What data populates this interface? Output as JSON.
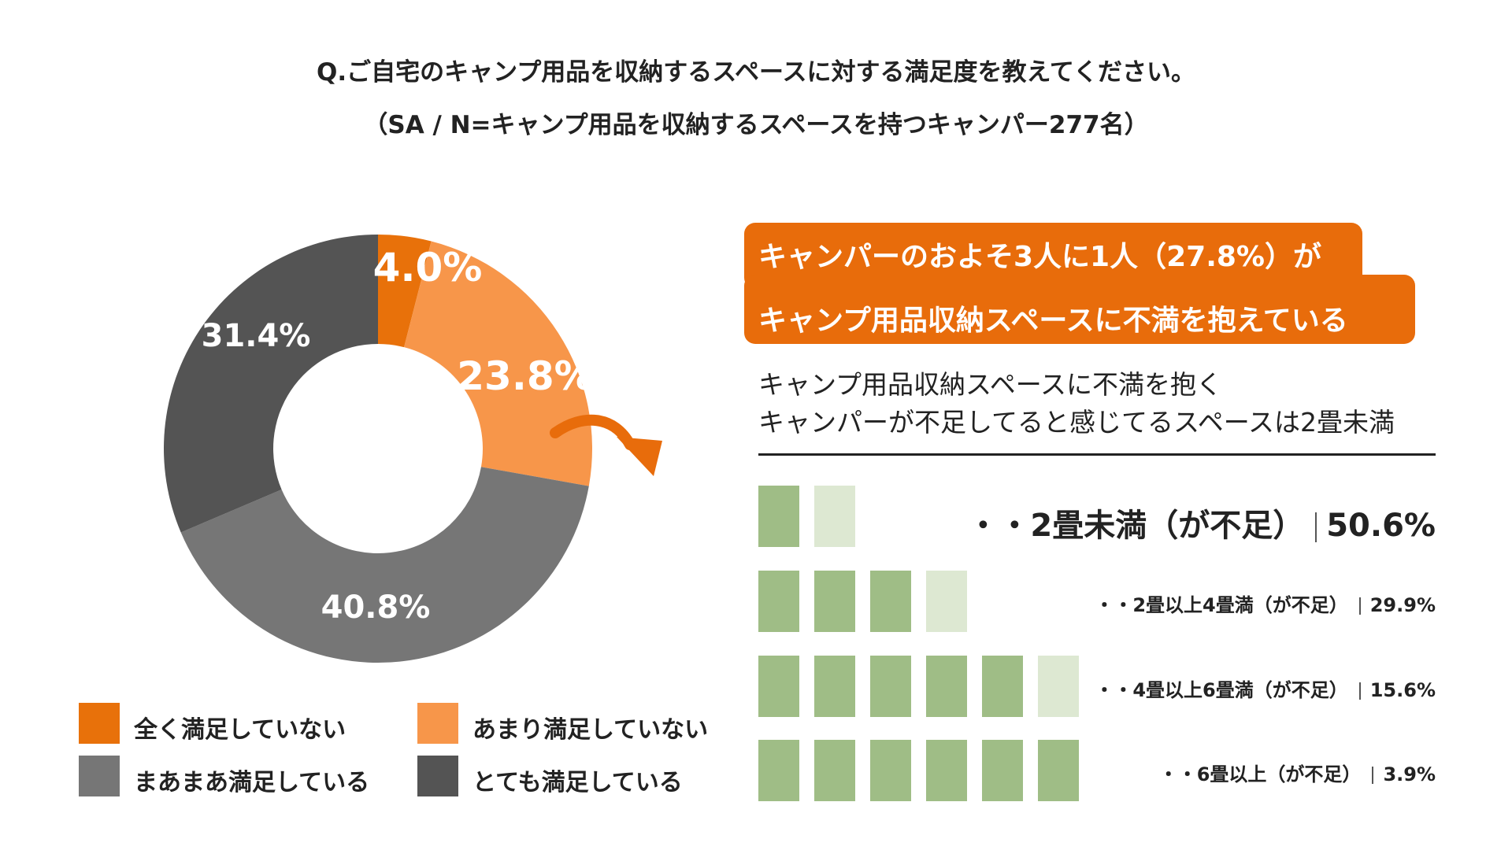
{
  "header": {
    "question": "Q.ご自宅のキャンプ用品を収納するスペースに対する満足度を教えてください。",
    "sample": "（SA / N=キャンプ用品を収納するスペースを持つキャンパー277名）"
  },
  "chart_data": [
    {
      "type": "pie",
      "variant": "donut",
      "slices": [
        {
          "label": "全く満足していない",
          "value": 4.0,
          "value_label": "4.0%",
          "color": "#e8710a"
        },
        {
          "label": "あまり満足していない",
          "value": 23.8,
          "value_label": "23.8%",
          "color": "#f7964a"
        },
        {
          "label": "まあまあ満足している",
          "value": 40.8,
          "value_label": "40.8%",
          "color": "#767676"
        },
        {
          "label": "とても満足している",
          "value": 31.4,
          "value_label": "31.4%",
          "color": "#545454"
        }
      ],
      "legend_placement": "bottom"
    },
    {
      "type": "bar",
      "variant": "pictogram",
      "unit_icon": "tatami-mat-icon",
      "categories": [
        "・・2畳未満（が不足）",
        "・・2畳以上4畳満（が不足）",
        "・・4畳以上6畳満（が不足）",
        "・・6畳以上（が不足）"
      ],
      "values": [
        50.6,
        29.9,
        15.6,
        3.9
      ],
      "value_labels": [
        "50.6%",
        "29.9%",
        "15.6%",
        "3.9%"
      ],
      "mats_shown": [
        2,
        4,
        6,
        6
      ],
      "colors": {
        "full": "#9fbd86",
        "light": "#dde8d2"
      }
    }
  ],
  "callout": {
    "line1": "キャンパーのおよそ3人に1人（27.8%）が",
    "line2": "キャンプ用品収納スペースに不満を抱えている",
    "color": "#e86c0b"
  },
  "subheading": {
    "line1": "キャンプ用品収納スペースに不満を抱く",
    "line2": "キャンパーが不足してると感じてるスペースは2畳未満"
  }
}
